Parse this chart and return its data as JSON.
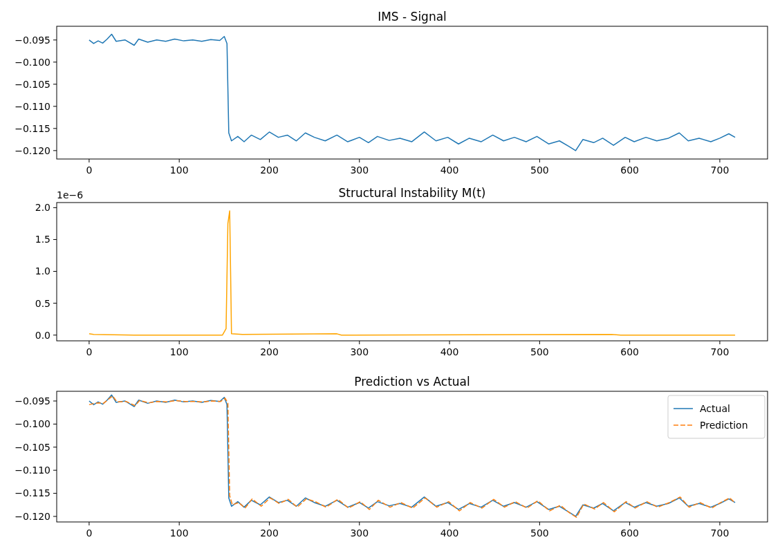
{
  "chart_data": [
    {
      "type": "line",
      "title": "IMS - Signal",
      "xlim": [
        -36,
        753
      ],
      "xticks": [
        0,
        100,
        200,
        300,
        400,
        500,
        600,
        700
      ],
      "ylim": [
        -0.1219,
        -0.0919
      ],
      "yticks": [
        {
          "value": -0.095,
          "label": "−0.095"
        },
        {
          "value": -0.1,
          "label": "−0.100"
        },
        {
          "value": -0.105,
          "label": "−0.105"
        },
        {
          "value": -0.11,
          "label": "−0.110"
        },
        {
          "value": -0.115,
          "label": "−0.115"
        },
        {
          "value": -0.12,
          "label": "−0.120"
        }
      ],
      "grid": false,
      "legend": false,
      "series": [
        {
          "color": "#1f77b4",
          "x": [
            0,
            5,
            10,
            15,
            20,
            25,
            30,
            40,
            50,
            55,
            65,
            75,
            85,
            95,
            105,
            115,
            125,
            135,
            145,
            150,
            153,
            155,
            158,
            165,
            172,
            180,
            190,
            200,
            210,
            220,
            230,
            240,
            250,
            262,
            275,
            287,
            300,
            310,
            320,
            333,
            345,
            358,
            372,
            385,
            398,
            410,
            422,
            435,
            448,
            460,
            472,
            485,
            497,
            510,
            522,
            532,
            540,
            548,
            560,
            570,
            582,
            595,
            605,
            618,
            630,
            643,
            655,
            665,
            677,
            690,
            700,
            710,
            717
          ],
          "values": [
            -0.095,
            -0.0958,
            -0.0952,
            -0.0957,
            -0.0948,
            -0.0937,
            -0.0953,
            -0.095,
            -0.0962,
            -0.0948,
            -0.0955,
            -0.095,
            -0.0953,
            -0.0948,
            -0.0952,
            -0.095,
            -0.0953,
            -0.0949,
            -0.0951,
            -0.0942,
            -0.0958,
            -0.116,
            -0.1178,
            -0.1168,
            -0.118,
            -0.1165,
            -0.1175,
            -0.1158,
            -0.117,
            -0.1165,
            -0.1178,
            -0.116,
            -0.117,
            -0.1178,
            -0.1165,
            -0.118,
            -0.117,
            -0.1182,
            -0.1168,
            -0.1177,
            -0.1172,
            -0.118,
            -0.1158,
            -0.1178,
            -0.117,
            -0.1185,
            -0.1172,
            -0.118,
            -0.1165,
            -0.1178,
            -0.117,
            -0.118,
            -0.1168,
            -0.1185,
            -0.1178,
            -0.119,
            -0.12,
            -0.1175,
            -0.1182,
            -0.1172,
            -0.1188,
            -0.117,
            -0.118,
            -0.117,
            -0.1178,
            -0.1172,
            -0.116,
            -0.1178,
            -0.1172,
            -0.118,
            -0.1172,
            -0.1162,
            -0.117
          ]
        }
      ]
    },
    {
      "type": "line",
      "title": "Structural Instability M(t)",
      "annotations": [
        "1e−6"
      ],
      "xlim": [
        -36,
        753
      ],
      "xticks": [
        0,
        100,
        200,
        300,
        400,
        500,
        600,
        700
      ],
      "ylim": [
        -0.09,
        2.08
      ],
      "yticks": [
        {
          "value": 0,
          "label": "0.0"
        },
        {
          "value": 0.5,
          "label": "0.5"
        },
        {
          "value": 1,
          "label": "1.0"
        },
        {
          "value": 1.5,
          "label": "1.5"
        },
        {
          "value": 2,
          "label": "2.0"
        }
      ],
      "grid": false,
      "legend": false,
      "series": [
        {
          "color": "#ffa500",
          "x": [
            0,
            5,
            50,
            148,
            152,
            154,
            156,
            157,
            158,
            170,
            275,
            280,
            580,
            590,
            717
          ],
          "values": [
            0.02,
            0.01,
            0,
            0,
            0.1,
            1.75,
            1.95,
            1.0,
            0.02,
            0.01,
            0.02,
            0,
            0.01,
            0,
            0
          ]
        }
      ]
    },
    {
      "type": "line",
      "title": "Prediction vs Actual",
      "xlim": [
        -36,
        753
      ],
      "xticks": [
        0,
        100,
        200,
        300,
        400,
        500,
        600,
        700
      ],
      "ylim": [
        -0.1212,
        -0.0929
      ],
      "yticks": [
        {
          "value": -0.095,
          "label": "−0.095"
        },
        {
          "value": -0.1,
          "label": "−0.100"
        },
        {
          "value": -0.105,
          "label": "−0.105"
        },
        {
          "value": -0.11,
          "label": "−0.110"
        },
        {
          "value": -0.115,
          "label": "−0.115"
        },
        {
          "value": -0.12,
          "label": "−0.120"
        }
      ],
      "grid": false,
      "legend": "top right",
      "series": [
        {
          "name": "Actual",
          "color": "#1f77b4",
          "line_style": "solid",
          "x": [
            0,
            5,
            10,
            15,
            20,
            25,
            30,
            40,
            50,
            55,
            65,
            75,
            85,
            95,
            105,
            115,
            125,
            135,
            145,
            150,
            153,
            155,
            158,
            165,
            172,
            180,
            190,
            200,
            210,
            220,
            230,
            240,
            250,
            262,
            275,
            287,
            300,
            310,
            320,
            333,
            345,
            358,
            372,
            385,
            398,
            410,
            422,
            435,
            448,
            460,
            472,
            485,
            497,
            510,
            522,
            532,
            540,
            548,
            560,
            570,
            582,
            595,
            605,
            618,
            630,
            643,
            655,
            665,
            677,
            690,
            700,
            710,
            717
          ],
          "values": [
            -0.095,
            -0.0958,
            -0.0952,
            -0.0957,
            -0.0948,
            -0.0937,
            -0.0953,
            -0.095,
            -0.0962,
            -0.0948,
            -0.0955,
            -0.095,
            -0.0953,
            -0.0948,
            -0.0952,
            -0.095,
            -0.0953,
            -0.0949,
            -0.0951,
            -0.0942,
            -0.0958,
            -0.116,
            -0.1178,
            -0.1168,
            -0.118,
            -0.1165,
            -0.1175,
            -0.1158,
            -0.117,
            -0.1165,
            -0.1178,
            -0.116,
            -0.117,
            -0.1178,
            -0.1165,
            -0.118,
            -0.117,
            -0.1182,
            -0.1168,
            -0.1177,
            -0.1172,
            -0.118,
            -0.1158,
            -0.1178,
            -0.117,
            -0.1185,
            -0.1172,
            -0.118,
            -0.1165,
            -0.1178,
            -0.117,
            -0.118,
            -0.1168,
            -0.1185,
            -0.1178,
            -0.119,
            -0.12,
            -0.1175,
            -0.1182,
            -0.1172,
            -0.1188,
            -0.117,
            -0.118,
            -0.117,
            -0.1178,
            -0.1172,
            -0.116,
            -0.1178,
            -0.1172,
            -0.118,
            -0.1172,
            -0.1162,
            -0.117
          ]
        },
        {
          "name": "Prediction",
          "color": "#ff7f0e",
          "line_style": "dashed",
          "x": [
            0,
            6,
            11,
            16,
            21,
            26,
            31,
            41,
            51,
            56,
            66,
            76,
            86,
            96,
            106,
            116,
            126,
            136,
            146,
            151,
            154,
            156,
            159,
            166,
            173,
            181,
            191,
            201,
            211,
            221,
            231,
            241,
            251,
            263,
            276,
            288,
            301,
            311,
            321,
            334,
            346,
            359,
            373,
            386,
            399,
            411,
            423,
            436,
            449,
            461,
            473,
            486,
            498,
            511,
            523,
            533,
            541,
            549,
            561,
            571,
            583,
            596,
            606,
            619,
            631,
            644,
            656,
            666,
            678,
            691,
            701,
            711,
            717
          ],
          "values": [
            -0.0958,
            -0.0955,
            -0.0954,
            -0.0955,
            -0.0947,
            -0.0939,
            -0.0952,
            -0.0951,
            -0.096,
            -0.0949,
            -0.0954,
            -0.0951,
            -0.0952,
            -0.0949,
            -0.0951,
            -0.0951,
            -0.0952,
            -0.095,
            -0.0951,
            -0.0944,
            -0.0955,
            -0.1155,
            -0.1175,
            -0.117,
            -0.1182,
            -0.1162,
            -0.1178,
            -0.116,
            -0.1172,
            -0.1163,
            -0.118,
            -0.1162,
            -0.1168,
            -0.118,
            -0.1163,
            -0.1182,
            -0.1168,
            -0.1185,
            -0.1165,
            -0.118,
            -0.117,
            -0.1182,
            -0.116,
            -0.118,
            -0.1168,
            -0.1188,
            -0.117,
            -0.1182,
            -0.1163,
            -0.118,
            -0.1168,
            -0.1182,
            -0.1166,
            -0.1188,
            -0.1176,
            -0.1192,
            -0.1202,
            -0.1173,
            -0.1184,
            -0.117,
            -0.119,
            -0.1168,
            -0.1182,
            -0.1168,
            -0.118,
            -0.117,
            -0.1158,
            -0.118,
            -0.117,
            -0.1182,
            -0.117,
            -0.116,
            -0.1171
          ]
        }
      ]
    }
  ]
}
